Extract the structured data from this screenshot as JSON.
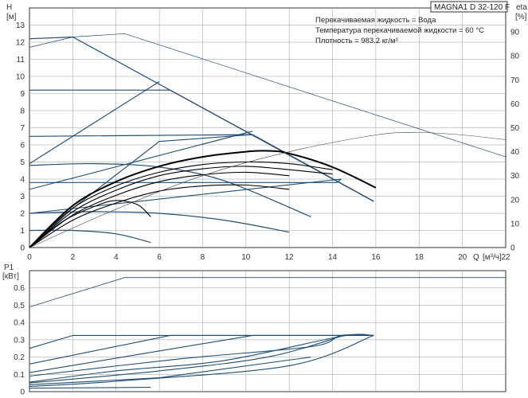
{
  "title": "MAGNA1 D 32-120 F",
  "info_lines": [
    "Перекачиваемая жидкость = Вода",
    "Температура перекачиваемой жидкости = 60 °C",
    "Плотность = 983.2 кг/м³"
  ],
  "colors": {
    "curve": "#1f4e79",
    "grid": "#9a9a9a",
    "eff": "#444444",
    "bep": "#000000"
  },
  "chart_data": [
    {
      "type": "line",
      "id": "head-eta",
      "ylabel": "H",
      "yunit": "[м]",
      "y2label": "eta",
      "y2unit": "[%]",
      "xlabel": "Q",
      "xunit": "[м³/ч]",
      "xlim": [
        0,
        22
      ],
      "ylim": [
        0,
        14
      ],
      "y2lim": [
        0,
        100
      ],
      "xticks": [
        0,
        2,
        4,
        6,
        8,
        10,
        12,
        14,
        16,
        18,
        20,
        22
      ],
      "yticks": [
        0,
        1,
        2,
        3,
        4,
        5,
        6,
        7,
        8,
        9,
        10,
        11,
        12,
        13
      ],
      "y2ticks": [
        0,
        10,
        20,
        30,
        40,
        50,
        60,
        70,
        80,
        90
      ],
      "grid": true,
      "series": [
        {
          "kind": "head",
          "points": [
            [
              0,
              11.7
            ],
            [
              2,
              12.3
            ],
            [
              4.4,
              12.5
            ],
            [
              22,
              5.3
            ]
          ]
        },
        {
          "kind": "head",
          "points": [
            [
              0,
              12.2
            ],
            [
              2,
              12.3
            ],
            [
              15.9,
              2.7
            ]
          ]
        },
        {
          "kind": "head",
          "points": [
            [
              0,
              9.2
            ],
            [
              6.5,
              9.2
            ],
            [
              15.9,
              2.7
            ]
          ]
        },
        {
          "kind": "head",
          "points": [
            [
              0,
              6.5
            ],
            [
              10.3,
              6.6
            ],
            [
              15.9,
              2.7
            ]
          ]
        },
        {
          "kind": "head",
          "points": [
            [
              0,
              3.8
            ],
            [
              14.2,
              3.8
            ],
            [
              14.4,
              4.0
            ]
          ]
        },
        {
          "kind": "head",
          "points": [
            [
              0,
              4.8
            ],
            [
              3,
              4.9
            ],
            [
              6,
              4.7
            ],
            [
              9,
              3.9
            ],
            [
              13,
              1.8
            ]
          ]
        },
        {
          "kind": "head",
          "points": [
            [
              0,
              2.0
            ],
            [
              3,
              2.1
            ],
            [
              6,
              2.0
            ],
            [
              9,
              1.6
            ],
            [
              12,
              0.9
            ]
          ]
        },
        {
          "kind": "head",
          "points": [
            [
              0,
              1.0
            ],
            [
              2,
              1.0
            ],
            [
              4,
              0.8
            ],
            [
              5.6,
              0.3
            ]
          ]
        },
        {
          "kind": "system",
          "points": [
            [
              0,
              4.9
            ],
            [
              6,
              9.7
            ]
          ]
        },
        {
          "kind": "system",
          "points": [
            [
              0,
              3.4
            ],
            [
              10.3,
              6.8
            ]
          ]
        },
        {
          "kind": "system",
          "points": [
            [
              0,
              0
            ],
            [
              2,
              2.3
            ],
            [
              6,
              6.2
            ],
            [
              10.3,
              6.6
            ],
            [
              15.9,
              2.7
            ]
          ]
        },
        {
          "kind": "system",
          "points": [
            [
              0,
              2.0
            ],
            [
              14.4,
              4.0
            ]
          ]
        },
        {
          "kind": "bep",
          "points": [
            [
              0,
              0
            ],
            [
              2,
              2.45
            ],
            [
              4,
              3.85
            ],
            [
              6,
              4.75
            ],
            [
              8,
              5.3
            ],
            [
              10,
              5.6
            ],
            [
              11,
              5.65
            ],
            [
              12,
              5.5
            ],
            [
              14,
              4.7
            ],
            [
              16,
              3.5
            ]
          ]
        },
        {
          "kind": "bep",
          "points": [
            [
              0,
              0
            ],
            [
              2,
              2.3
            ],
            [
              4,
              3.6
            ],
            [
              6,
              4.4
            ],
            [
              8,
              4.85
            ],
            [
              10,
              5.0
            ],
            [
              12,
              4.9
            ],
            [
              14,
              4.55
            ]
          ]
        },
        {
          "kind": "bep",
          "points": [
            [
              0,
              0
            ],
            [
              2,
              2.1
            ],
            [
              4,
              3.35
            ],
            [
              6,
              4.2
            ],
            [
              8,
              4.6
            ],
            [
              10,
              4.75
            ],
            [
              12,
              4.55
            ],
            [
              14,
              4.3
            ]
          ]
        },
        {
          "kind": "bep",
          "points": [
            [
              0,
              0
            ],
            [
              2,
              1.9
            ],
            [
              4,
              3.05
            ],
            [
              6,
              3.85
            ],
            [
              8,
              4.25
            ],
            [
              10,
              4.4
            ],
            [
              12,
              4.2
            ]
          ]
        },
        {
          "kind": "bep",
          "points": [
            [
              0,
              0
            ],
            [
              2,
              1.6
            ],
            [
              4,
              2.6
            ],
            [
              6,
              3.3
            ],
            [
              8,
              3.6
            ],
            [
              10,
              3.65
            ],
            [
              12,
              3.4
            ]
          ]
        },
        {
          "kind": "bep",
          "points": [
            [
              0,
              0
            ],
            [
              1.5,
              1.5
            ],
            [
              3,
              2.4
            ],
            [
              4,
              2.75
            ],
            [
              5,
              2.5
            ],
            [
              5.6,
              1.8
            ]
          ]
        },
        {
          "kind": "efficiency",
          "points": [
            [
              0,
              0
            ],
            [
              4,
              16
            ],
            [
              8,
              30
            ],
            [
              12,
              40
            ],
            [
              16,
              47
            ],
            [
              18,
              48
            ],
            [
              20,
              47
            ],
            [
              22,
              45
            ]
          ]
        }
      ]
    },
    {
      "type": "line",
      "id": "power",
      "ylabel": "P1",
      "yunit": "[кВт]",
      "xlim": [
        0,
        22
      ],
      "ylim": [
        0,
        0.7
      ],
      "yticks": [
        0,
        0.1,
        0.2,
        0.3,
        0.4,
        0.5,
        0.6
      ],
      "grid": true,
      "series": [
        {
          "kind": "power",
          "points": [
            [
              0,
              0.49
            ],
            [
              4.4,
              0.66
            ],
            [
              22,
              0.66
            ]
          ]
        },
        {
          "kind": "power",
          "points": [
            [
              0,
              0.25
            ],
            [
              2,
              0.325
            ],
            [
              15.9,
              0.325
            ]
          ]
        },
        {
          "kind": "power",
          "points": [
            [
              0,
              0.16
            ],
            [
              6.5,
              0.325
            ],
            [
              15.9,
              0.325
            ]
          ]
        },
        {
          "kind": "power",
          "points": [
            [
              0,
              0.11
            ],
            [
              10.3,
              0.325
            ],
            [
              15.9,
              0.325
            ]
          ]
        },
        {
          "kind": "power",
          "points": [
            [
              0,
              0.09
            ],
            [
              7,
              0.19
            ],
            [
              13,
              0.26
            ],
            [
              14.4,
              0.325
            ],
            [
              15.9,
              0.325
            ]
          ]
        },
        {
          "kind": "power",
          "points": [
            [
              0,
              0.055
            ],
            [
              4,
              0.12
            ],
            [
              9,
              0.18
            ],
            [
              14.4,
              0.32
            ],
            [
              15.9,
              0.325
            ]
          ]
        },
        {
          "kind": "power",
          "points": [
            [
              0,
              0.05
            ],
            [
              6,
              0.12
            ],
            [
              11,
              0.2
            ],
            [
              14.4,
              0.32
            ]
          ]
        },
        {
          "kind": "power",
          "points": [
            [
              0,
              0.04
            ],
            [
              6,
              0.08
            ],
            [
              13,
              0.2
            ]
          ]
        },
        {
          "kind": "power",
          "points": [
            [
              0,
              0.03
            ],
            [
              4,
              0.06
            ],
            [
              12,
              0.15
            ],
            [
              15.9,
              0.325
            ]
          ]
        },
        {
          "kind": "power",
          "points": [
            [
              0,
              0.02
            ],
            [
              5.6,
              0.025
            ]
          ]
        }
      ]
    }
  ]
}
